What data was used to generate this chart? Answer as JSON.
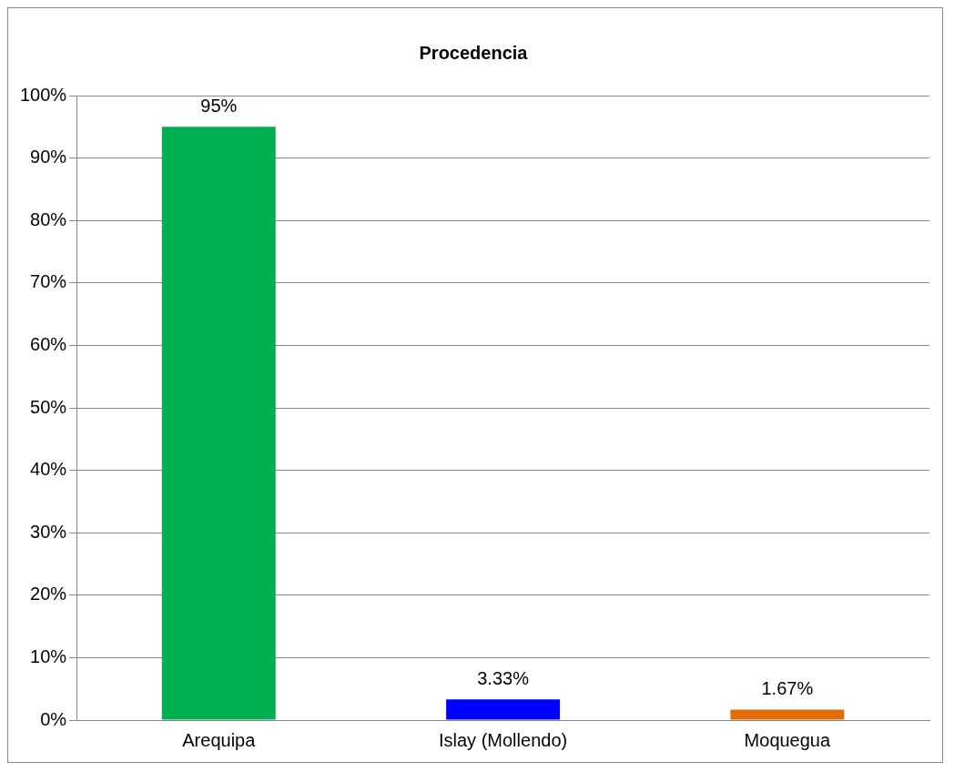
{
  "chart_data": {
    "type": "bar",
    "title": "Procedencia",
    "categories": [
      "Arequipa",
      "Islay (Mollendo)",
      "Moquegua"
    ],
    "values": [
      95,
      3.33,
      1.67
    ],
    "colors": [
      "#00b050",
      "#0000ff",
      "#e36c09"
    ],
    "value_labels": [
      "95%",
      "3.33%",
      "1.67%"
    ],
    "ylim": [
      0,
      100
    ],
    "yticks": [
      {
        "value": 0,
        "label": "0%"
      },
      {
        "value": 10,
        "label": "10%"
      },
      {
        "value": 20,
        "label": "20%"
      },
      {
        "value": 30,
        "label": "30%"
      },
      {
        "value": 40,
        "label": "40%"
      },
      {
        "value": 50,
        "label": "50%"
      },
      {
        "value": 60,
        "label": "60%"
      },
      {
        "value": 70,
        "label": "70%"
      },
      {
        "value": 80,
        "label": "80%"
      },
      {
        "value": 90,
        "label": "90%"
      },
      {
        "value": 100,
        "label": "100%"
      }
    ],
    "grid": "y",
    "legend": false
  }
}
